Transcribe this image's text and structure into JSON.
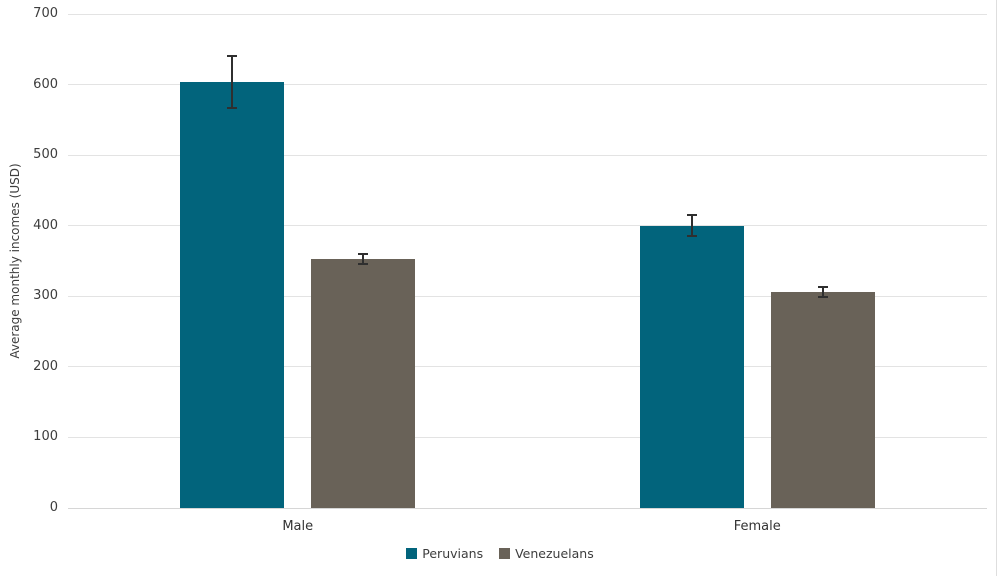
{
  "chart_data": {
    "type": "bar",
    "title": "",
    "categories": [
      "Male",
      "Female"
    ],
    "series": [
      {
        "name": "Peruvians",
        "color": "#02647C",
        "values": [
          604,
          400
        ],
        "error_ranges": [
          [
            565,
            642
          ],
          [
            384,
            416
          ]
        ]
      },
      {
        "name": "Venezuelans",
        "color": "#696258",
        "values": [
          353,
          306
        ],
        "error_ranges": [
          [
            345,
            361
          ],
          [
            298,
            314
          ]
        ]
      }
    ],
    "xlabel": "",
    "ylabel": "Average monthly incomes (USD)",
    "ylim": [
      0,
      700
    ],
    "yticks": [
      0,
      100,
      200,
      300,
      400,
      500,
      600,
      700
    ],
    "grid": true,
    "legend_position": "bottom",
    "error_bar_color": "#2f2f2f",
    "gridline_color": "#e3e3e3"
  }
}
